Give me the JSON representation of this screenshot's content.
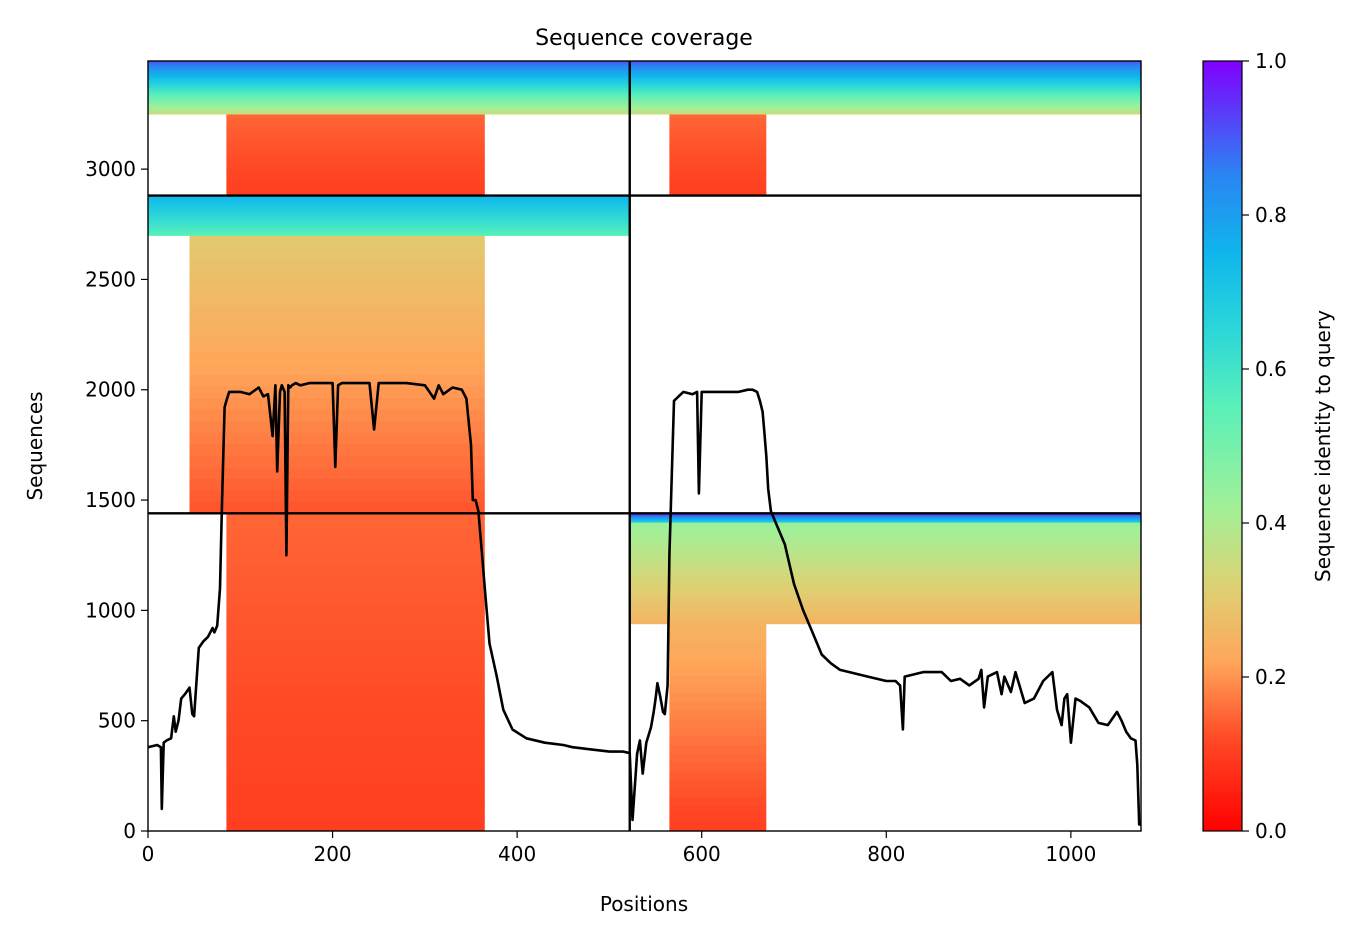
{
  "chart_data": {
    "type": "heatmap",
    "title": "Sequence coverage",
    "xlabel": "Positions",
    "ylabel": "Sequences",
    "xlim": [
      0,
      1076
    ],
    "ylim": [
      0,
      3490
    ],
    "x_ticks": [
      0,
      200,
      400,
      600,
      800,
      1000
    ],
    "y_ticks": [
      0,
      500,
      1000,
      1500,
      2000,
      2500,
      3000
    ],
    "colormap": "rainbow_r",
    "colorbar": {
      "label": "Sequence identity to query",
      "range": [
        0,
        1
      ],
      "ticks": [
        "0.0",
        "0.2",
        "0.4",
        "0.6",
        "0.8",
        "1.0"
      ]
    },
    "chain_boundaries": {
      "x": [
        522
      ],
      "y": [
        1440,
        2880
      ]
    },
    "coverage_blocks": [
      {
        "x": [
          85,
          365
        ],
        "y": [
          0,
          1440
        ],
        "identity": [
          0.1,
          0.15
        ]
      },
      {
        "x": [
          565,
          670
        ],
        "y": [
          0,
          940
        ],
        "identity": [
          0.1,
          0.25
        ]
      },
      {
        "x": [
          522,
          1076
        ],
        "y": [
          940,
          1440
        ],
        "identity": [
          0.25,
          0.45
        ]
      },
      {
        "x": [
          522,
          1076
        ],
        "y": [
          1400,
          1440
        ],
        "identity": [
          0.65,
          0.95
        ]
      },
      {
        "x": [
          45,
          365
        ],
        "y": [
          1440,
          2700
        ],
        "identity": [
          0.13,
          0.3
        ]
      },
      {
        "x": [
          0,
          522
        ],
        "y": [
          2700,
          2880
        ],
        "identity": [
          0.55,
          0.75
        ]
      },
      {
        "x": [
          85,
          365
        ],
        "y": [
          2880,
          3250
        ],
        "identity": [
          0.1,
          0.15
        ]
      },
      {
        "x": [
          565,
          670
        ],
        "y": [
          2880,
          3250
        ],
        "identity": [
          0.1,
          0.15
        ]
      },
      {
        "x": [
          0,
          1076
        ],
        "y": [
          3250,
          3490
        ],
        "identity": [
          0.35,
          0.9
        ]
      }
    ],
    "series": [
      {
        "type": "line",
        "color": "#000000",
        "x": [
          0,
          10,
          14,
          15,
          17,
          20,
          25,
          28,
          30,
          33,
          36,
          40,
          45,
          48,
          50,
          55,
          60,
          65,
          70,
          72,
          75,
          78,
          80,
          83,
          85,
          88,
          92,
          100,
          110,
          120,
          125,
          130,
          135,
          138,
          140,
          143,
          145,
          148,
          150,
          152,
          154,
          156,
          160,
          165,
          175,
          185,
          200,
          203,
          206,
          210,
          220,
          240,
          245,
          250,
          260,
          280,
          300,
          310,
          315,
          320,
          330,
          340,
          345,
          350,
          352,
          355,
          358,
          360,
          362,
          365,
          370,
          378,
          385,
          395,
          410,
          430,
          450,
          460,
          480,
          500,
          515,
          520,
          522,
          525,
          530,
          533,
          536,
          540,
          545,
          548,
          550,
          552,
          555,
          558,
          560,
          563,
          565,
          570,
          580,
          590,
          595,
          597,
          600,
          605,
          620,
          640,
          650,
          655,
          660,
          663,
          666,
          668,
          670,
          672,
          675,
          680,
          690,
          700,
          710,
          720,
          730,
          740,
          750,
          760,
          780,
          800,
          810,
          815,
          818,
          820,
          840,
          860,
          870,
          880,
          890,
          900,
          903,
          906,
          910,
          920,
          925,
          928,
          935,
          940,
          950,
          960,
          970,
          980,
          985,
          990,
          993,
          996,
          1000,
          1005,
          1010,
          1020,
          1030,
          1040,
          1050,
          1055,
          1060,
          1065,
          1070,
          1072,
          1074,
          1076
        ],
        "y": [
          380,
          390,
          380,
          100,
          400,
          410,
          420,
          520,
          450,
          500,
          600,
          620,
          650,
          530,
          520,
          830,
          860,
          880,
          920,
          900,
          930,
          1100,
          1450,
          1920,
          1950,
          1990,
          1990,
          1990,
          1980,
          2010,
          1970,
          1980,
          1790,
          2020,
          1630,
          1990,
          2020,
          1990,
          1250,
          2020,
          2010,
          2020,
          2030,
          2020,
          2030,
          2030,
          2030,
          1650,
          2020,
          2030,
          2030,
          2030,
          1820,
          2030,
          2030,
          2030,
          2020,
          1960,
          2020,
          1980,
          2010,
          2000,
          1960,
          1750,
          1500,
          1500,
          1450,
          1350,
          1250,
          1100,
          850,
          700,
          550,
          460,
          420,
          400,
          390,
          380,
          370,
          360,
          360,
          355,
          355,
          50,
          350,
          410,
          260,
          400,
          470,
          540,
          600,
          670,
          610,
          540,
          530,
          660,
          1250,
          1950,
          1990,
          1980,
          1990,
          1530,
          1990,
          1990,
          1990,
          1990,
          2000,
          2000,
          1990,
          1950,
          1900,
          1800,
          1700,
          1550,
          1450,
          1400,
          1300,
          1120,
          1000,
          900,
          800,
          760,
          730,
          720,
          700,
          680,
          680,
          660,
          460,
          700,
          720,
          720,
          680,
          690,
          660,
          690,
          730,
          560,
          700,
          720,
          620,
          700,
          630,
          720,
          580,
          600,
          680,
          720,
          550,
          480,
          600,
          620,
          400,
          600,
          590,
          560,
          490,
          480,
          540,
          500,
          450,
          420,
          410,
          300,
          30,
          30
        ]
      }
    ]
  }
}
